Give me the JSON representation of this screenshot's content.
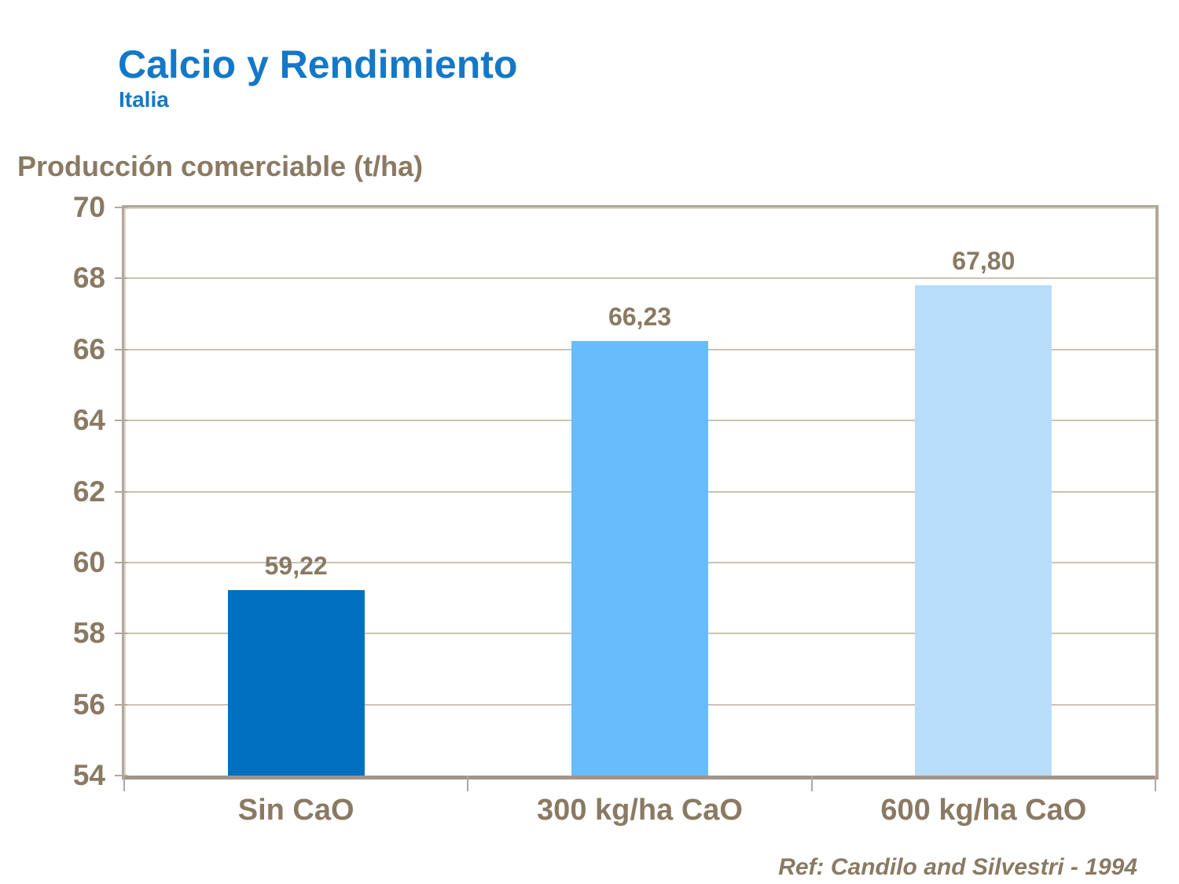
{
  "slide": {
    "title": "Calcio y Rendimiento",
    "subtitle": "Italia",
    "reference": "Ref: Candilo and Silvestri - 1994"
  },
  "colors": {
    "title_blue": "#1478C8",
    "text_brown": "#8A7A63",
    "axis_line": "#B3A79A",
    "gridline": "#CDC2B2",
    "bar_colors": [
      "#0070C0",
      "#67BCFC",
      "#B8DDFB"
    ]
  },
  "chart_data": {
    "type": "bar",
    "title": "Calcio y Rendimiento",
    "subtitle": "Italia",
    "categories": [
      "Sin CaO",
      "300 kg/ha CaO",
      "600 kg/ha CaO"
    ],
    "values": [
      59.22,
      66.23,
      67.8
    ],
    "value_labels": [
      "59,22",
      "66,23",
      "67,80"
    ],
    "xlabel": "",
    "ylabel": "Producción comerciable (t/ha)",
    "ylim": [
      54,
      70
    ],
    "ytick_step": 2,
    "yticks": [
      54,
      56,
      58,
      60,
      62,
      64,
      66,
      68,
      70
    ],
    "grid": "horizontal",
    "legend": "none"
  }
}
